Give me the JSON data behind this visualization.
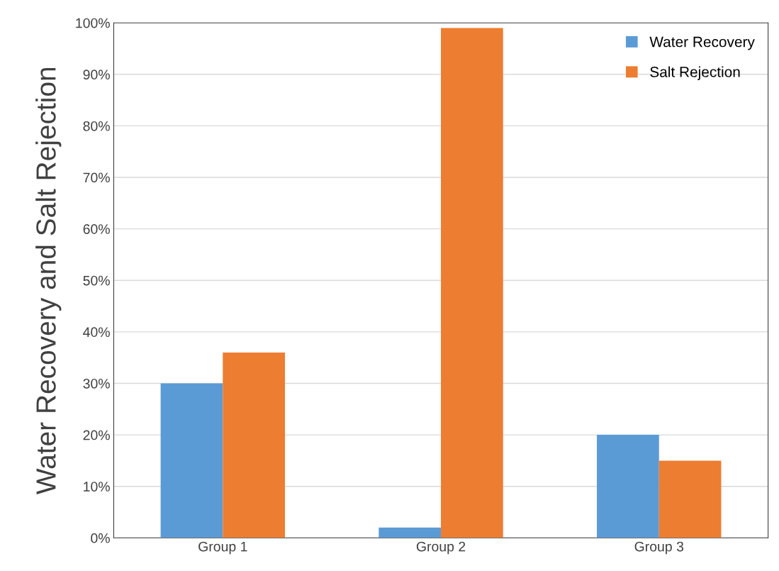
{
  "chart_data": {
    "type": "bar",
    "ylabel": "Water Recovery and Salt Rejection",
    "categories": [
      "Group 1",
      "Group 2",
      "Group 3"
    ],
    "series": [
      {
        "name": "Water Recovery",
        "color": "#5b9bd5",
        "values": [
          30,
          2,
          20
        ]
      },
      {
        "name": "Salt Rejection",
        "color": "#ed7d31",
        "values": [
          36,
          99,
          15
        ]
      }
    ],
    "ylim": [
      0,
      100
    ],
    "yticks": [
      {
        "value": 0,
        "label": "0%"
      },
      {
        "value": 10,
        "label": "10%"
      },
      {
        "value": 20,
        "label": "20%"
      },
      {
        "value": 30,
        "label": "30%"
      },
      {
        "value": 40,
        "label": "40%"
      },
      {
        "value": 50,
        "label": "50%"
      },
      {
        "value": 60,
        "label": "60%"
      },
      {
        "value": 70,
        "label": "70%"
      },
      {
        "value": 80,
        "label": "80%"
      },
      {
        "value": 90,
        "label": "90%"
      },
      {
        "value": 100,
        "label": "100%"
      }
    ],
    "grid": "y",
    "legend": "top right"
  }
}
